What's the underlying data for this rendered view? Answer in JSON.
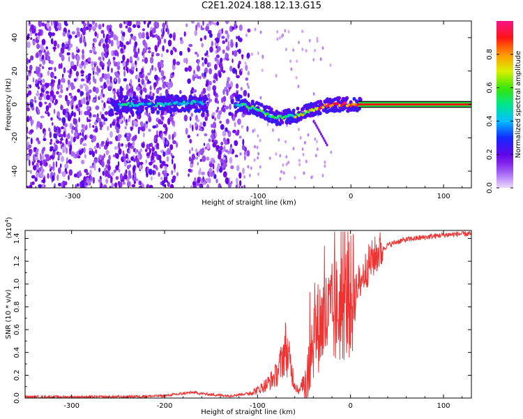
{
  "title": "C2E1.2024.188.12.13.G15",
  "spectrogram": {
    "xlabel": "Height of straight line (km)",
    "ylabel": "Frequency (Hz)",
    "xlim": [
      -350,
      130
    ],
    "ylim": [
      -50,
      50
    ],
    "xticks": [
      -300,
      -200,
      -100,
      0,
      100
    ],
    "yticks": [
      -40,
      -20,
      0,
      20,
      40
    ],
    "colorbar": {
      "label": "Normalized spectral amplitude",
      "ticks": [
        "0.0",
        "0.2",
        "0.4",
        "0.6",
        "0.8"
      ],
      "tick_values": [
        0.0,
        0.2,
        0.4,
        0.6,
        0.8
      ],
      "range": [
        0,
        1
      ]
    }
  },
  "chart_data": [
    {
      "type": "heatmap",
      "title": "C2E1.2024.188.12.13.G15",
      "xlabel": "Height of straight line (km)",
      "ylabel": "Frequency (Hz)",
      "xlim": [
        -350,
        130
      ],
      "ylim": [
        -50,
        50
      ],
      "description_series": [
        {
          "name": "signal ridge center (Hz) vs height (km)",
          "x": [
            -280,
            -250,
            -200,
            -170,
            -120,
            -100,
            -80,
            -60,
            -40,
            -20,
            0,
            10,
            130
          ],
          "y": [
            -5,
            0,
            0,
            1,
            0,
            -3,
            -8,
            -7,
            -3,
            0,
            0,
            0,
            0
          ]
        }
      ],
      "colorbar": {
        "label": "Normalized spectral amplitude",
        "range": [
          0,
          1
        ]
      }
    },
    {
      "type": "line",
      "xlabel": "Height of straight line (km)",
      "ylabel": "SNR (10 * v/v)",
      "y_multiplier": "(x10^4)",
      "xlim": [
        -350,
        130
      ],
      "ylim": [
        0,
        1.47
      ],
      "xticks": [
        -300,
        -200,
        -100,
        0,
        100
      ],
      "yticks": [
        0.0,
        0.2,
        0.4,
        0.6,
        0.8,
        1.0,
        1.2,
        1.4
      ],
      "series": [
        {
          "name": "SNR",
          "color": "#ee3333",
          "x": [
            -350,
            -300,
            -250,
            -200,
            -180,
            -170,
            -150,
            -130,
            -110,
            -100,
            -90,
            -80,
            -75,
            -70,
            -65,
            -60,
            -55,
            -50,
            -45,
            -40,
            -35,
            -30,
            -20,
            -10,
            0,
            10,
            20,
            30,
            40,
            50,
            60,
            80,
            100,
            120,
            130
          ],
          "y": [
            0.01,
            0.01,
            0.01,
            0.02,
            0.04,
            0.05,
            0.03,
            0.02,
            0.04,
            0.07,
            0.12,
            0.2,
            0.3,
            0.45,
            0.3,
            0.12,
            0.06,
            0.15,
            0.3,
            0.55,
            0.62,
            0.68,
            0.72,
            0.8,
            0.88,
            1.02,
            1.18,
            1.28,
            1.34,
            1.37,
            1.39,
            1.41,
            1.43,
            1.44,
            1.44
          ]
        }
      ]
    }
  ]
}
